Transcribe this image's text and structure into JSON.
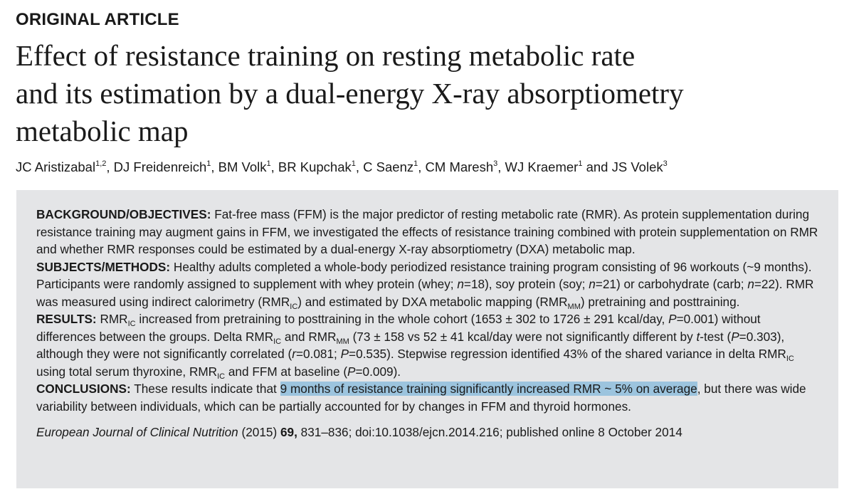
{
  "article_type": "ORIGINAL ARTICLE",
  "title_lines": [
    "Effect of resistance training on resting metabolic rate",
    "and its estimation by a dual-energy X-ray absorptiometry",
    "metabolic map"
  ],
  "authors": [
    {
      "name": "JC Aristizabal",
      "aff": "1,2"
    },
    {
      "name": "DJ Freidenreich",
      "aff": "1"
    },
    {
      "name": "BM Volk",
      "aff": "1"
    },
    {
      "name": "BR Kupchak",
      "aff": "1"
    },
    {
      "name": "C Saenz",
      "aff": "1"
    },
    {
      "name": "CM Maresh",
      "aff": "3"
    },
    {
      "name": "WJ Kraemer",
      "aff": "1"
    },
    {
      "name": "JS Volek",
      "aff": "3"
    }
  ],
  "abstract": {
    "background": {
      "heading": "BACKGROUND/OBJECTIVES:",
      "text": " Fat-free mass (FFM) is the major predictor of resting metabolic rate (RMR). As protein supplementation during resistance training may augment gains in FFM, we investigated the effects of resistance training combined with protein supplementation on RMR and whether RMR responses could be estimated by a dual-energy X-ray absorptiometry (DXA) metabolic map."
    },
    "methods": {
      "heading": "SUBJECTS/METHODS:",
      "t1": " Healthy adults completed a whole-body periodized resistance training program consisting of 96 workouts (~9 months). Participants were randomly assigned to supplement with whey protein (whey; ",
      "t2": "=18), soy protein (soy; ",
      "t3": "=21) or carbohydrate (carb; ",
      "t4": "=22). RMR was measured using indirect calorimetry (RMR",
      "t5": ") and estimated by DXA metabolic mapping (RMR",
      "t6": ") pretraining and posttraining.",
      "n": "n",
      "ic": "IC",
      "mm": "MM"
    },
    "results": {
      "heading": "RESULTS:",
      "t1": " RMR",
      "t2": " increased from pretraining to posttraining in the whole cohort (1653 ± 302 to 1726 ± 291 kcal/day, ",
      "t3": "=0.001) without differences between the groups. Delta RMR",
      "t4": " and RMR",
      "t5": " (73 ± 158 vs 52 ± 41 kcal/day were not significantly different by ",
      "t6": "t",
      "t7": "-test (",
      "t8": "=0.303), although they were not significantly correlated (",
      "t9": "r",
      "t10": "=0.081; ",
      "t11": "=0.535). Stepwise regression identified 43% of the shared variance in delta RMR",
      "t12": " using total serum thyroxine, RMR",
      "t13": " and FFM at baseline (",
      "t14": "=0.009).",
      "p": "P",
      "ic": "IC",
      "mm": "MM"
    },
    "conclusions": {
      "heading": "CONCLUSIONS:",
      "t1": " These results indicate that ",
      "highlighted": "9 months of resistance training significantly increased RMR ~ 5% on average",
      "t2": ", but there was wide variability between individuals, which can be partially accounted for by changes in FFM and thyroid hormones."
    },
    "citation": {
      "journal": "European Journal of Clinical Nutrition",
      "year": " (2015) ",
      "volume": "69,",
      "rest": " 831–836; doi:10.1038/ejcn.2014.216; published online 8 October 2014"
    }
  },
  "colors": {
    "abstract_bg": "#e4e5e7",
    "highlight": "#9cc4de",
    "text": "#1a1a1a"
  }
}
